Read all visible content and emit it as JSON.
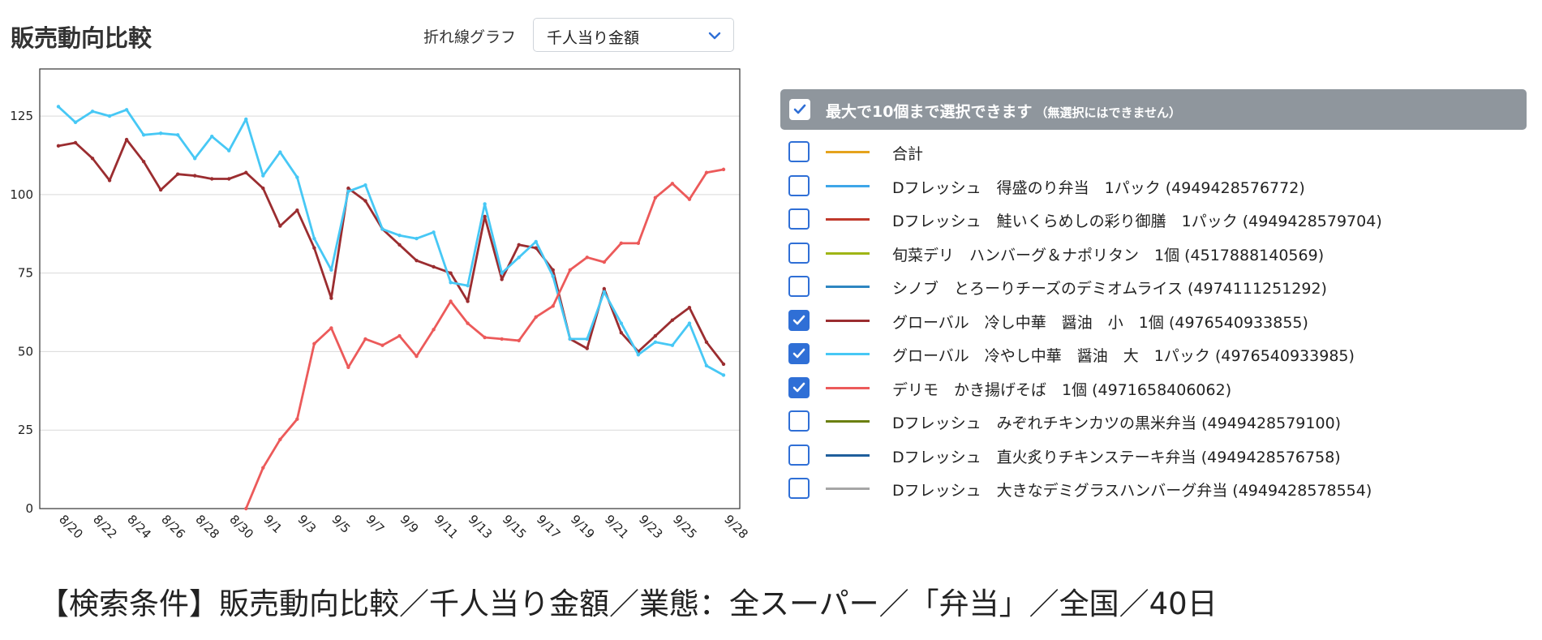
{
  "header": {
    "title": "販売動向比較",
    "chart_type_label": "折れ線グラフ",
    "metric_select": {
      "value": "千人当り金額",
      "icon": "chevron-down-icon"
    }
  },
  "panel": {
    "header_label": "最大で10個まで選択できます",
    "header_note": "（無選択にはできません）",
    "header_checked": true,
    "items": [
      {
        "label": "合計",
        "color": "#e5a31d",
        "checked": false
      },
      {
        "label": "Dフレッシュ　得盛のり弁当　1パック (4949428576772)",
        "color": "#3ea6e8",
        "checked": false
      },
      {
        "label": "Dフレッシュ　鮭いくらめしの彩り御膳　1パック (4949428579704)",
        "color": "#c0392b",
        "checked": false
      },
      {
        "label": "旬菜デリ　ハンバーグ＆ナポリタン　1個 (4517888140569)",
        "color": "#9fb515",
        "checked": false
      },
      {
        "label": "シノブ　とろーりチーズのデミオムライス (4974111251292)",
        "color": "#2e86c1",
        "checked": false
      },
      {
        "label": "グローバル　冷し中華　醤油　小　1個 (4976540933855)",
        "color": "#9b2d30",
        "checked": true
      },
      {
        "label": "グローバル　冷やし中華　醤油　大　1パック (4976540933985)",
        "color": "#47c8f5",
        "checked": true
      },
      {
        "label": "デリモ　かき揚げそば　1個 (4971658406062)",
        "color": "#ec5a5a",
        "checked": true
      },
      {
        "label": "Dフレッシュ　みぞれチキンカツの黒米弁当 (4949428579100)",
        "color": "#6b7f0f",
        "checked": false
      },
      {
        "label": "Dフレッシュ　直火炙りチキンステーキ弁当 (4949428576758)",
        "color": "#1f5f9c",
        "checked": false
      },
      {
        "label": "Dフレッシュ　大きなデミグラスハンバーグ弁当 (4949428578554)",
        "color": "#a6a6a6",
        "checked": false
      }
    ]
  },
  "footer": {
    "text": "【検索条件】販売動向比較／千人当り金額／業態：全スーパー／「弁当」／全国／40日"
  },
  "chart_data": {
    "type": "line",
    "title": "",
    "xlabel": "",
    "ylabel": "",
    "ylim": [
      0,
      140
    ],
    "yticks": [
      0,
      25,
      50,
      75,
      100,
      125
    ],
    "grid": true,
    "legend": "right panel",
    "x_tick_labels": [
      "8/20",
      "8/22",
      "8/24",
      "8/26",
      "8/28",
      "8/30",
      "9/1",
      "9/3",
      "9/5",
      "9/7",
      "9/9",
      "9/11",
      "9/13",
      "9/15",
      "9/17",
      "9/19",
      "9/21",
      "9/23",
      "9/25",
      "9/28"
    ],
    "categories": [
      "8/20",
      "8/21",
      "8/22",
      "8/23",
      "8/24",
      "8/25",
      "8/26",
      "8/27",
      "8/28",
      "8/29",
      "8/30",
      "8/31",
      "9/1",
      "9/2",
      "9/3",
      "9/4",
      "9/5",
      "9/6",
      "9/7",
      "9/8",
      "9/9",
      "9/10",
      "9/11",
      "9/12",
      "9/13",
      "9/14",
      "9/15",
      "9/16",
      "9/17",
      "9/18",
      "9/19",
      "9/20",
      "9/21",
      "9/22",
      "9/23",
      "9/24",
      "9/25",
      "9/26",
      "9/27",
      "9/28"
    ],
    "series": [
      {
        "name": "グローバル　冷し中華　醤油　小　1個 (4976540933855)",
        "color": "#9b2d30",
        "values": [
          115.5,
          116.5,
          111.5,
          104.5,
          117.5,
          110.5,
          101.5,
          106.5,
          106,
          105,
          105,
          107,
          102,
          90,
          95,
          83,
          67,
          102,
          98,
          89,
          84,
          79,
          77,
          75,
          66,
          93,
          73,
          84,
          83,
          76,
          54,
          51,
          70,
          56,
          50,
          55,
          60,
          64,
          53,
          46
        ]
      },
      {
        "name": "グローバル　冷やし中華　醤油　大　1パック (4976540933985)",
        "color": "#47c8f5",
        "values": [
          128,
          123,
          126.5,
          125,
          127,
          119,
          119.5,
          119,
          111.5,
          118.5,
          114,
          124,
          106,
          113.5,
          105.5,
          86,
          76,
          101,
          103,
          89,
          87,
          86,
          88,
          72,
          71,
          97,
          75,
          80,
          85,
          74,
          54,
          54,
          69,
          59,
          49,
          53,
          52,
          59,
          45.5,
          42.5
        ]
      },
      {
        "name": "デリモ　かき揚げそば　1個 (4971658406062)",
        "color": "#ec5a5a",
        "values": [
          null,
          null,
          null,
          null,
          null,
          null,
          null,
          null,
          null,
          null,
          null,
          0,
          13,
          22,
          28.5,
          52.5,
          57.5,
          45,
          54,
          52,
          55,
          48.5,
          57,
          66,
          59,
          54.5,
          54,
          53.5,
          61,
          64.5,
          76,
          80,
          78.5,
          84.5,
          84.5,
          99,
          103.5,
          98.5,
          107,
          108
        ]
      }
    ]
  }
}
